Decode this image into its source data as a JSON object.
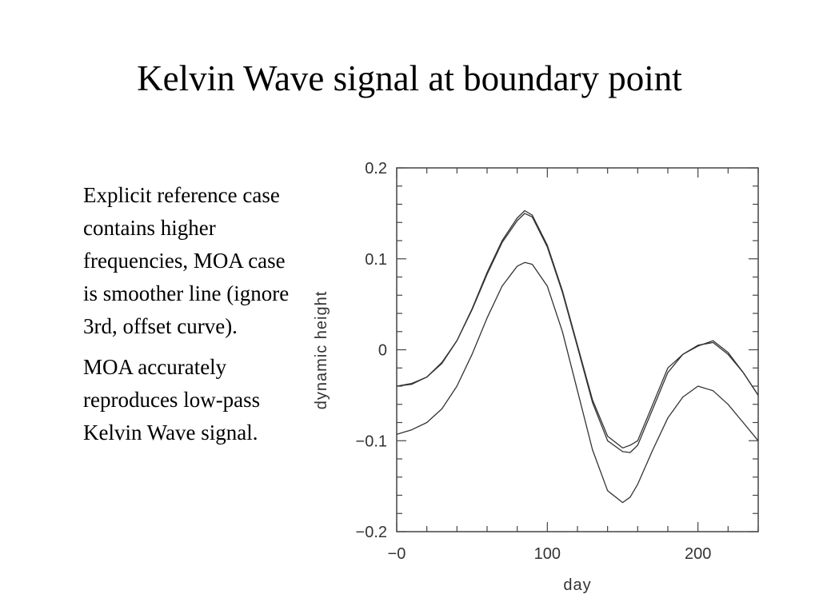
{
  "slide": {
    "title": "Kelvin Wave signal at boundary point",
    "bullets": [
      "Explicit reference case contains higher frequencies, MOA case is smoother line (ignore 3rd, offset curve).",
      "MOA accurately reproduces low-pass Kelvin Wave signal."
    ]
  },
  "chart_data": {
    "type": "line",
    "title": "",
    "xlabel": "day",
    "ylabel": "dynamic height",
    "xlim": [
      0,
      240
    ],
    "ylim": [
      -0.2,
      0.2
    ],
    "xticks": [
      0,
      100,
      200
    ],
    "xtick_labels": [
      "−0",
      "100",
      "200"
    ],
    "yticks": [
      0.2,
      0.1,
      0,
      -0.1,
      -0.2
    ],
    "ytick_labels": [
      "0.2",
      "0.1",
      "0",
      "−0.1",
      "−0.2"
    ],
    "grid": false,
    "line_color": "#333333",
    "series": [
      {
        "x": [
          0,
          10,
          20,
          30,
          40,
          50,
          60,
          70,
          80,
          85,
          90,
          100,
          110,
          120,
          130,
          140,
          150,
          155,
          160,
          170,
          180,
          190,
          200,
          210,
          220,
          230,
          240
        ],
        "y": [
          -0.04,
          -0.038,
          -0.03,
          -0.015,
          0.01,
          0.045,
          0.085,
          0.12,
          0.145,
          0.153,
          0.148,
          0.115,
          0.065,
          0.005,
          -0.055,
          -0.095,
          -0.108,
          -0.105,
          -0.1,
          -0.06,
          -0.02,
          -0.005,
          0.005,
          0.008,
          -0.005,
          -0.025,
          -0.05
        ]
      },
      {
        "x": [
          0,
          10,
          20,
          30,
          40,
          50,
          60,
          70,
          80,
          85,
          90,
          100,
          110,
          120,
          130,
          140,
          150,
          155,
          160,
          170,
          180,
          190,
          200,
          210,
          220,
          230,
          240
        ],
        "y": [
          -0.04,
          -0.037,
          -0.03,
          -0.014,
          0.01,
          0.044,
          0.083,
          0.118,
          0.142,
          0.15,
          0.146,
          0.113,
          0.063,
          0.003,
          -0.058,
          -0.1,
          -0.112,
          -0.113,
          -0.105,
          -0.065,
          -0.025,
          -0.005,
          0.004,
          0.01,
          -0.003,
          -0.025,
          -0.05
        ]
      },
      {
        "x": [
          0,
          10,
          20,
          30,
          40,
          50,
          60,
          70,
          80,
          85,
          90,
          100,
          110,
          120,
          130,
          140,
          150,
          155,
          160,
          170,
          180,
          190,
          200,
          210,
          220,
          230,
          240
        ],
        "y": [
          -0.093,
          -0.088,
          -0.08,
          -0.065,
          -0.04,
          -0.005,
          0.035,
          0.07,
          0.092,
          0.096,
          0.094,
          0.07,
          0.02,
          -0.045,
          -0.11,
          -0.155,
          -0.168,
          -0.162,
          -0.148,
          -0.11,
          -0.075,
          -0.052,
          -0.04,
          -0.045,
          -0.06,
          -0.08,
          -0.1
        ]
      }
    ]
  }
}
